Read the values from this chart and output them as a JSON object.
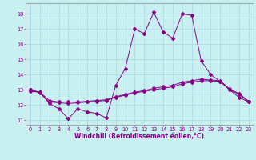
{
  "xlabel": "Windchill (Refroidissement éolien,°C)",
  "xlim": [
    -0.5,
    23.5
  ],
  "ylim": [
    10.7,
    18.7
  ],
  "yticks": [
    11,
    12,
    13,
    14,
    15,
    16,
    17,
    18
  ],
  "xticks": [
    0,
    1,
    2,
    3,
    4,
    5,
    6,
    7,
    8,
    9,
    10,
    11,
    12,
    13,
    14,
    15,
    16,
    17,
    18,
    19,
    20,
    21,
    22,
    23
  ],
  "background_color": "#c8f0f0",
  "grid_color": "#a0d0e0",
  "line_color": "#880088",
  "line1_y": [
    12.9,
    12.85,
    12.1,
    11.75,
    11.1,
    11.75,
    11.55,
    11.45,
    11.15,
    13.3,
    14.4,
    17.0,
    16.7,
    18.1,
    16.8,
    16.4,
    18.0,
    17.9,
    14.9,
    14.0,
    13.55,
    13.0,
    12.5,
    12.2
  ],
  "line2_y": [
    13.0,
    12.8,
    12.2,
    12.15,
    12.1,
    12.15,
    12.2,
    12.25,
    12.3,
    12.5,
    12.65,
    12.8,
    12.9,
    13.0,
    13.1,
    13.2,
    13.4,
    13.5,
    13.6,
    13.6,
    13.55,
    13.0,
    12.7,
    12.2
  ],
  "line3_y": [
    13.0,
    12.85,
    12.3,
    12.2,
    12.2,
    12.2,
    12.25,
    12.3,
    12.35,
    12.55,
    12.7,
    12.85,
    12.95,
    13.1,
    13.2,
    13.3,
    13.5,
    13.6,
    13.7,
    13.65,
    13.6,
    13.05,
    12.75,
    12.25
  ],
  "xlabel_fontsize": 5.5,
  "tick_fontsize": 4.8,
  "xlabel_color": "#880088",
  "tick_color": "#880088",
  "spine_color": "#888888",
  "marker": "D",
  "markersize": 2.0,
  "linewidth": 0.7
}
